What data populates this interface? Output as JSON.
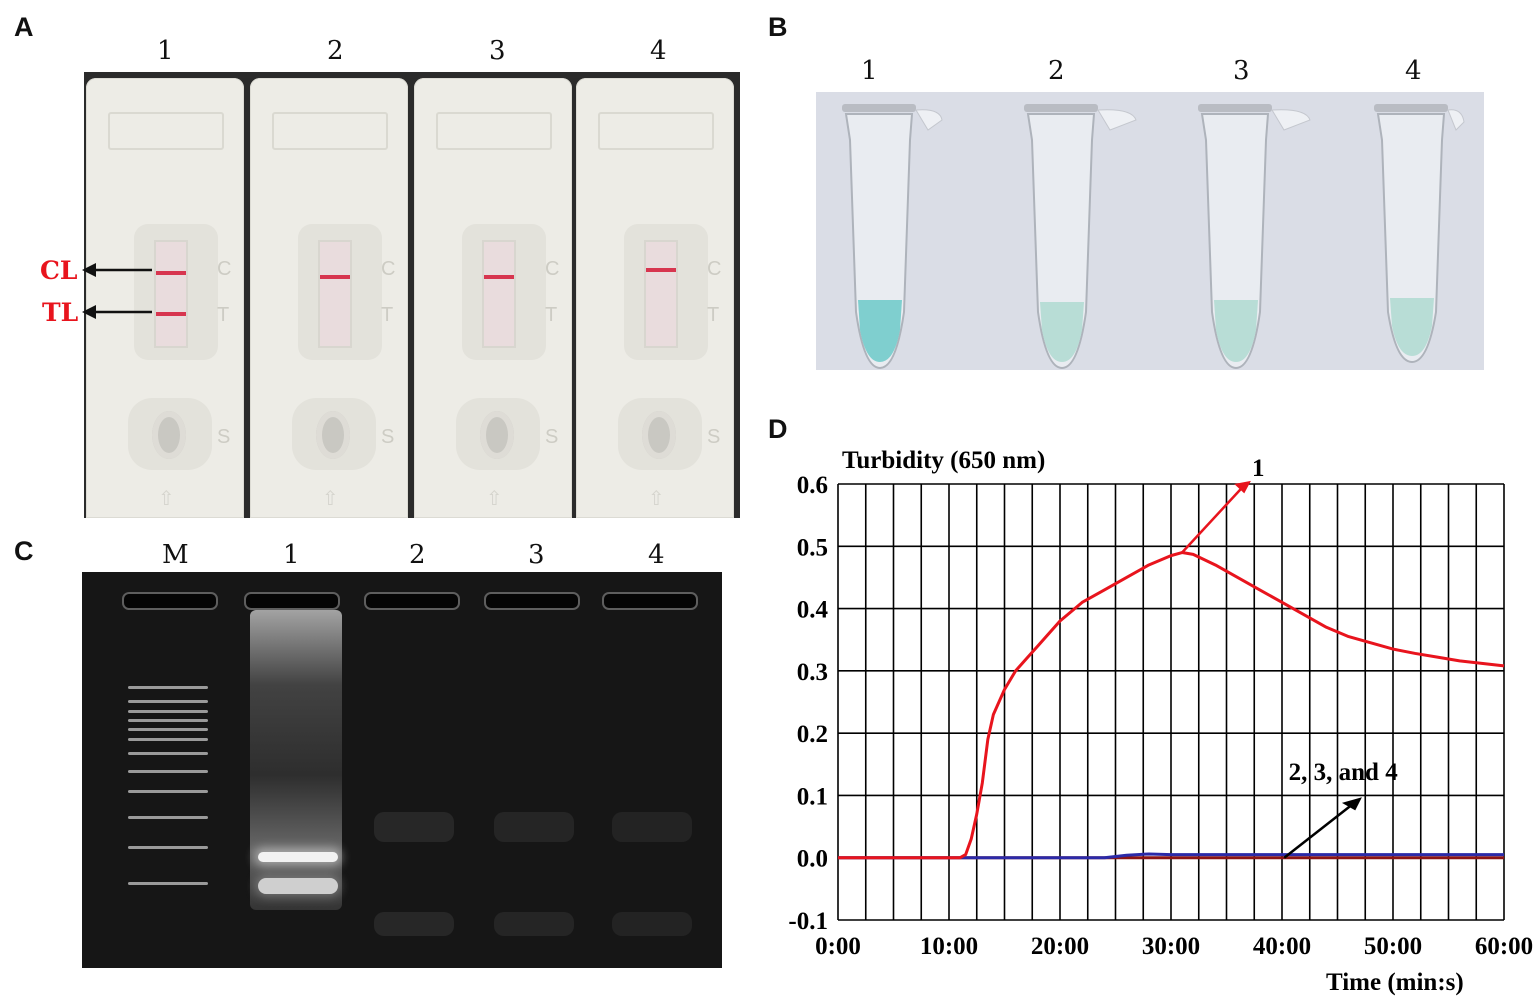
{
  "panels": {
    "a": {
      "letter": "A",
      "lanes": [
        "1",
        "2",
        "3",
        "4"
      ],
      "control_label": "CL",
      "test_label": "TL",
      "cassette_letters": [
        "C",
        "T",
        "S"
      ]
    },
    "b": {
      "letter": "B",
      "lanes": [
        "1",
        "2",
        "3",
        "4"
      ]
    },
    "c": {
      "letter": "C",
      "lanes": [
        "M",
        "1",
        "2",
        "3",
        "4"
      ]
    },
    "d": {
      "letter": "D"
    }
  },
  "colors": {
    "positive_line": "#e8141d",
    "negative_line": "#2b2aa8",
    "baseline": "#8b1414",
    "tube_liquid_positive": "#7fcfcf",
    "tube_liquid_negative": "#b8ddd6"
  },
  "chart_data": {
    "type": "line",
    "title": "Turbidity (650 nm)",
    "xlabel": "Time (min:s)",
    "ylabel": "",
    "xlim": [
      0,
      60
    ],
    "ylim": [
      -0.1,
      0.6
    ],
    "x_ticks": [
      "0:00",
      "10:00",
      "20:00",
      "30:00",
      "40:00",
      "50:00",
      "60:00"
    ],
    "y_ticks": [
      "0.6",
      "0.5",
      "0.4",
      "0.3",
      "0.2",
      "0.1",
      "0.0",
      "-0.1"
    ],
    "grid": true,
    "series": [
      {
        "name": "1",
        "color": "#e8141d",
        "x": [
          0,
          11,
          11.5,
          12,
          12.5,
          13,
          13.5,
          14,
          15,
          16,
          17,
          18,
          20,
          22,
          24,
          26,
          28,
          30,
          31,
          32,
          34,
          36,
          38,
          40,
          42,
          44,
          46,
          48,
          50,
          52,
          54,
          56,
          58,
          60
        ],
        "y": [
          0,
          0,
          0.005,
          0.03,
          0.07,
          0.12,
          0.19,
          0.23,
          0.27,
          0.3,
          0.32,
          0.34,
          0.38,
          0.41,
          0.43,
          0.45,
          0.47,
          0.485,
          0.49,
          0.487,
          0.47,
          0.45,
          0.43,
          0.41,
          0.39,
          0.37,
          0.355,
          0.345,
          0.335,
          0.328,
          0.322,
          0.316,
          0.312,
          0.308
        ]
      },
      {
        "name": "2, 3, and 4",
        "color": "#2b2aa8",
        "x": [
          0,
          24,
          26,
          28,
          30,
          40,
          50,
          60
        ],
        "y": [
          0,
          0,
          0.004,
          0.006,
          0.005,
          0.005,
          0.005,
          0.005
        ]
      }
    ],
    "annotations": [
      {
        "text": "1",
        "target_x": 31,
        "target_y": 0.49
      },
      {
        "text": "2, 3, and 4",
        "target_x": 46,
        "target_y": 0.005
      }
    ]
  }
}
